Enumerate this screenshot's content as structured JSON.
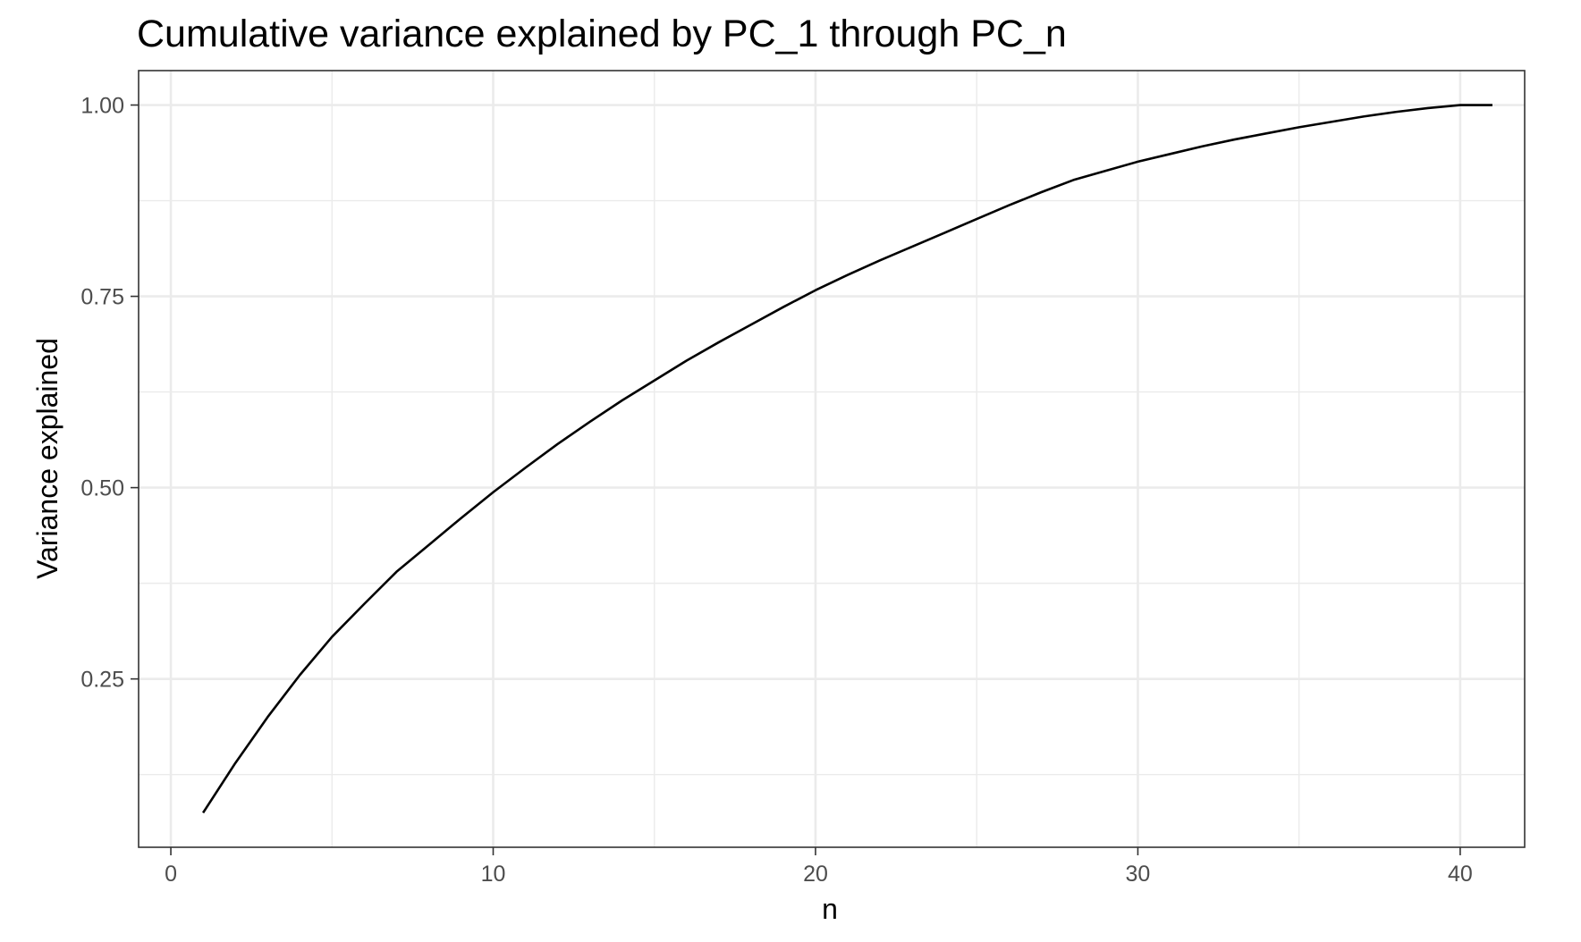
{
  "chart_data": {
    "type": "line",
    "title": "Cumulative variance explained by PC_1 through PC_n",
    "xlabel": "n",
    "ylabel": "Variance explained",
    "xlim": [
      -1,
      42
    ],
    "ylim": [
      0.03,
      1.045
    ],
    "x_ticks": [
      0,
      10,
      20,
      30,
      40
    ],
    "x_tick_labels": [
      "0",
      "10",
      "20",
      "30",
      "40"
    ],
    "x_minor_ticks": [
      5,
      15,
      25,
      35
    ],
    "y_ticks": [
      0.25,
      0.5,
      0.75,
      1.0
    ],
    "y_tick_labels": [
      "0.25",
      "0.50",
      "0.75",
      "1.00"
    ],
    "y_minor_ticks": [
      0.125,
      0.375,
      0.625,
      0.875
    ],
    "grid": true,
    "line_color": "#000000",
    "panel_border_color": "#333333",
    "grid_color": "#ebebeb",
    "series": [
      {
        "x": [
          1,
          2,
          3,
          4,
          5,
          6,
          7,
          8,
          9,
          10,
          11,
          12,
          13,
          14,
          15,
          16,
          17,
          18,
          19,
          20,
          21,
          22,
          23,
          24,
          25,
          26,
          27,
          28,
          29,
          30,
          31,
          32,
          33,
          34,
          35,
          36,
          37,
          38,
          39,
          40,
          41
        ],
        "values": [
          0.075,
          0.14,
          0.2,
          0.255,
          0.305,
          0.348,
          0.39,
          0.425,
          0.46,
          0.494,
          0.526,
          0.557,
          0.586,
          0.614,
          0.64,
          0.666,
          0.69,
          0.713,
          0.736,
          0.758,
          0.778,
          0.797,
          0.815,
          0.833,
          0.851,
          0.869,
          0.886,
          0.902,
          0.914,
          0.926,
          0.936,
          0.946,
          0.955,
          0.963,
          0.971,
          0.978,
          0.985,
          0.991,
          0.996,
          1.0,
          1.0
        ]
      }
    ]
  }
}
